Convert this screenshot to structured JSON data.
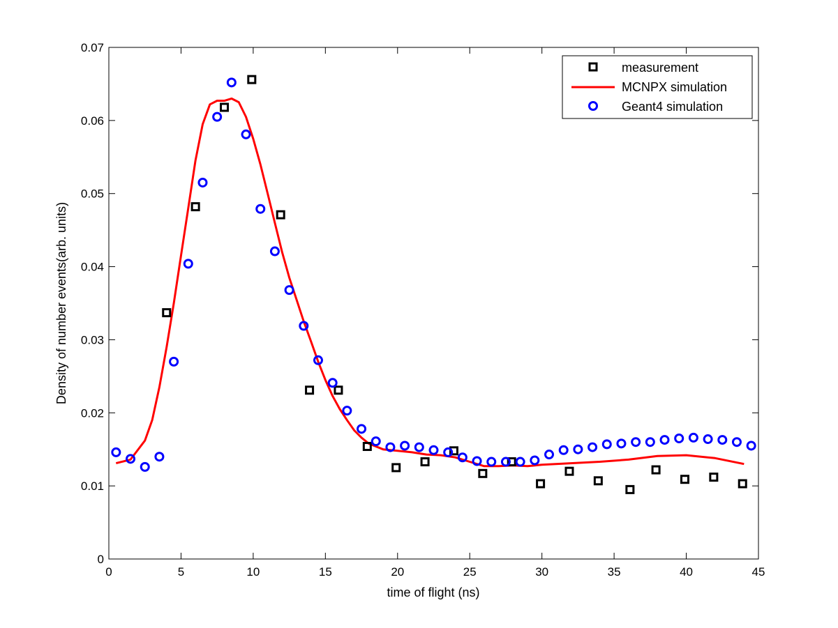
{
  "chart_data": {
    "type": "scatter",
    "title": "",
    "xlabel": "time of flight (ns)",
    "ylabel": "Density of number events(arb. units)",
    "xlim": [
      0,
      45
    ],
    "ylim": [
      0,
      0.07
    ],
    "xticks": [
      0,
      5,
      10,
      15,
      20,
      25,
      30,
      35,
      40,
      45
    ],
    "xtick_labels": [
      "0",
      "5",
      "10",
      "15",
      "20",
      "25",
      "30",
      "35",
      "40",
      "45"
    ],
    "yticks": [
      0,
      0.01,
      0.02,
      0.03,
      0.04,
      0.05,
      0.06,
      0.07
    ],
    "ytick_labels": [
      "0",
      "0.01",
      "0.02",
      "0.03",
      "0.04",
      "0.05",
      "0.06",
      "0.07"
    ],
    "grid": false,
    "legend_position": "top-right",
    "series": [
      {
        "name": "measurement",
        "style": "square-markers",
        "color": "#000000",
        "x": [
          4,
          6,
          8,
          9.9,
          11.9,
          13.9,
          15.9,
          17.9,
          19.9,
          21.9,
          23.9,
          25.9,
          27.9,
          29.9,
          31.9,
          33.9,
          36.1,
          37.9,
          39.9,
          41.9,
          43.9
        ],
        "y": [
          0.0337,
          0.0482,
          0.0618,
          0.0656,
          0.0471,
          0.0231,
          0.0231,
          0.0154,
          0.0125,
          0.0133,
          0.0148,
          0.0117,
          0.0133,
          0.0103,
          0.012,
          0.0107,
          0.0095,
          0.0122,
          0.0109,
          0.0112,
          0.0103
        ]
      },
      {
        "name": "MCNPX simulation",
        "style": "line",
        "color": "#ff0000",
        "x": [
          0.5,
          1.5,
          2.5,
          3,
          3.5,
          4,
          4.5,
          5,
          5.5,
          6,
          6.5,
          7,
          7.5,
          8,
          8.5,
          9,
          9.5,
          10,
          10.5,
          11,
          11.5,
          12,
          12.5,
          13,
          13.5,
          14,
          14.5,
          15,
          15.5,
          16,
          16.5,
          17,
          17.5,
          18,
          19,
          20,
          21,
          22,
          23,
          24,
          25,
          26,
          27,
          28,
          29,
          30,
          32,
          34,
          36,
          38,
          40,
          42,
          44
        ],
        "y": [
          0.0131,
          0.0136,
          0.0162,
          0.019,
          0.0235,
          0.029,
          0.035,
          0.0415,
          0.048,
          0.0545,
          0.0595,
          0.0622,
          0.0627,
          0.0627,
          0.063,
          0.0625,
          0.0605,
          0.0575,
          0.054,
          0.05,
          0.046,
          0.042,
          0.0385,
          0.0355,
          0.0325,
          0.0298,
          0.027,
          0.0245,
          0.0223,
          0.0205,
          0.019,
          0.0176,
          0.0166,
          0.0158,
          0.015,
          0.0148,
          0.0146,
          0.0143,
          0.0142,
          0.0139,
          0.0133,
          0.0127,
          0.0127,
          0.0128,
          0.0127,
          0.0129,
          0.0131,
          0.0133,
          0.0136,
          0.0141,
          0.0142,
          0.0138,
          0.013
        ]
      },
      {
        "name": "Geant4 simulation",
        "style": "circle-markers",
        "color": "#0000ff",
        "x": [
          0.5,
          1.5,
          2.5,
          3.5,
          4.5,
          5.5,
          6.5,
          7.5,
          8.5,
          9.5,
          10.5,
          11.5,
          12.5,
          13.5,
          14.5,
          15.5,
          16.5,
          17.5,
          18.5,
          19.5,
          20.5,
          21.5,
          22.5,
          23.5,
          24.5,
          25.5,
          26.5,
          27.5,
          28.5,
          29.5,
          30.5,
          31.5,
          32.5,
          33.5,
          34.5,
          35.5,
          36.5,
          37.5,
          38.5,
          39.5,
          40.5,
          41.5,
          42.5,
          43.5,
          44.5
        ],
        "y": [
          0.0146,
          0.0137,
          0.0126,
          0.014,
          0.027,
          0.0404,
          0.0515,
          0.0605,
          0.0652,
          0.0581,
          0.0479,
          0.0421,
          0.0368,
          0.0319,
          0.0272,
          0.0241,
          0.0203,
          0.0178,
          0.0161,
          0.0153,
          0.0155,
          0.0153,
          0.0149,
          0.0146,
          0.0139,
          0.0134,
          0.0133,
          0.0133,
          0.0133,
          0.0135,
          0.0143,
          0.0149,
          0.015,
          0.0153,
          0.0157,
          0.0158,
          0.016,
          0.016,
          0.0163,
          0.0165,
          0.0166,
          0.0164,
          0.0163,
          0.016,
          0.0155
        ]
      }
    ]
  }
}
